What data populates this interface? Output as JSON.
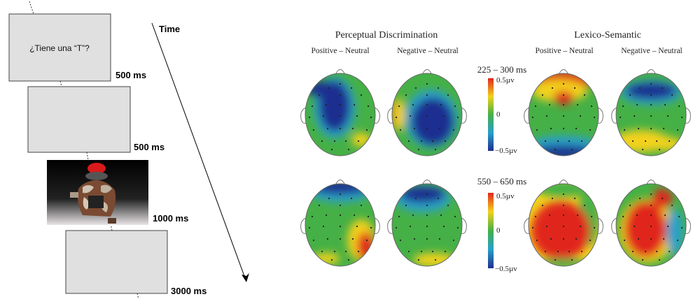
{
  "paradigm": {
    "frames": [
      {
        "stimulus": "¿Tiene una “T”?",
        "duration": "500 ms"
      },
      {
        "stimulus": "",
        "duration": "500 ms"
      },
      {
        "stimulus": "picture-stimulus",
        "duration": "1000 ms"
      },
      {
        "stimulus": "",
        "duration": "3000 ms"
      }
    ],
    "time_label": "Time"
  },
  "topography": {
    "groups": [
      {
        "title": "Perceptual Discrimination",
        "contrasts": [
          "Positive – Neutral",
          "Negative – Neutral"
        ]
      },
      {
        "title": "Lexico-Semantic",
        "contrasts": [
          "Positive – Neutral",
          "Negative – Neutral"
        ]
      }
    ],
    "windows": [
      {
        "label": "225 – 300 ms",
        "scale_max": "0.5µv",
        "scale_mid": "0",
        "scale_min": "−0.5µv"
      },
      {
        "label": "550 – 650 ms",
        "scale_max": "0.5µv",
        "scale_mid": "0",
        "scale_min": "−0.5µv"
      }
    ],
    "colormap": {
      "positive": "#e0261e",
      "neutral": "#3fae49",
      "negative": "#1f2f8f"
    }
  }
}
